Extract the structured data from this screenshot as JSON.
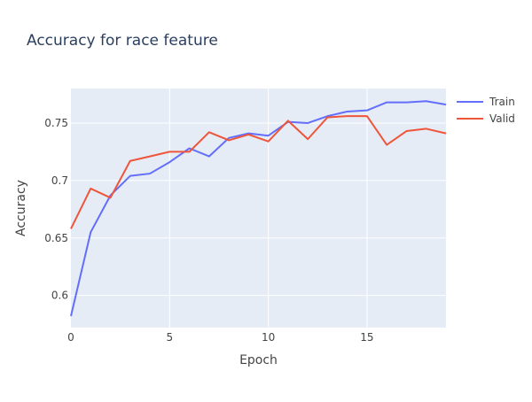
{
  "chart_data": {
    "type": "line",
    "title": "Accuracy for race feature",
    "xlabel": "Epoch",
    "ylabel": "Accuracy",
    "xlim": [
      0,
      19
    ],
    "ylim": [
      0.572,
      0.78
    ],
    "xticks": [
      0,
      5,
      10,
      15
    ],
    "yticks": [
      0.6,
      0.65,
      0.7,
      0.75
    ],
    "grid": true,
    "legend_position": "top-right",
    "x": [
      0,
      1,
      2,
      3,
      4,
      5,
      6,
      7,
      8,
      9,
      10,
      11,
      12,
      13,
      14,
      15,
      16,
      17,
      18,
      19
    ],
    "series": [
      {
        "name": "Train",
        "color": "#636efa",
        "values": [
          0.582,
          0.655,
          0.687,
          0.704,
          0.706,
          0.716,
          0.728,
          0.721,
          0.737,
          0.741,
          0.739,
          0.751,
          0.75,
          0.756,
          0.76,
          0.761,
          0.768,
          0.768,
          0.769,
          0.766
        ]
      },
      {
        "name": "Valid",
        "color": "#ef553b",
        "values": [
          0.658,
          0.693,
          0.685,
          0.717,
          0.721,
          0.725,
          0.725,
          0.742,
          0.735,
          0.74,
          0.734,
          0.752,
          0.736,
          0.755,
          0.756,
          0.756,
          0.731,
          0.743,
          0.745,
          0.741
        ]
      }
    ]
  }
}
